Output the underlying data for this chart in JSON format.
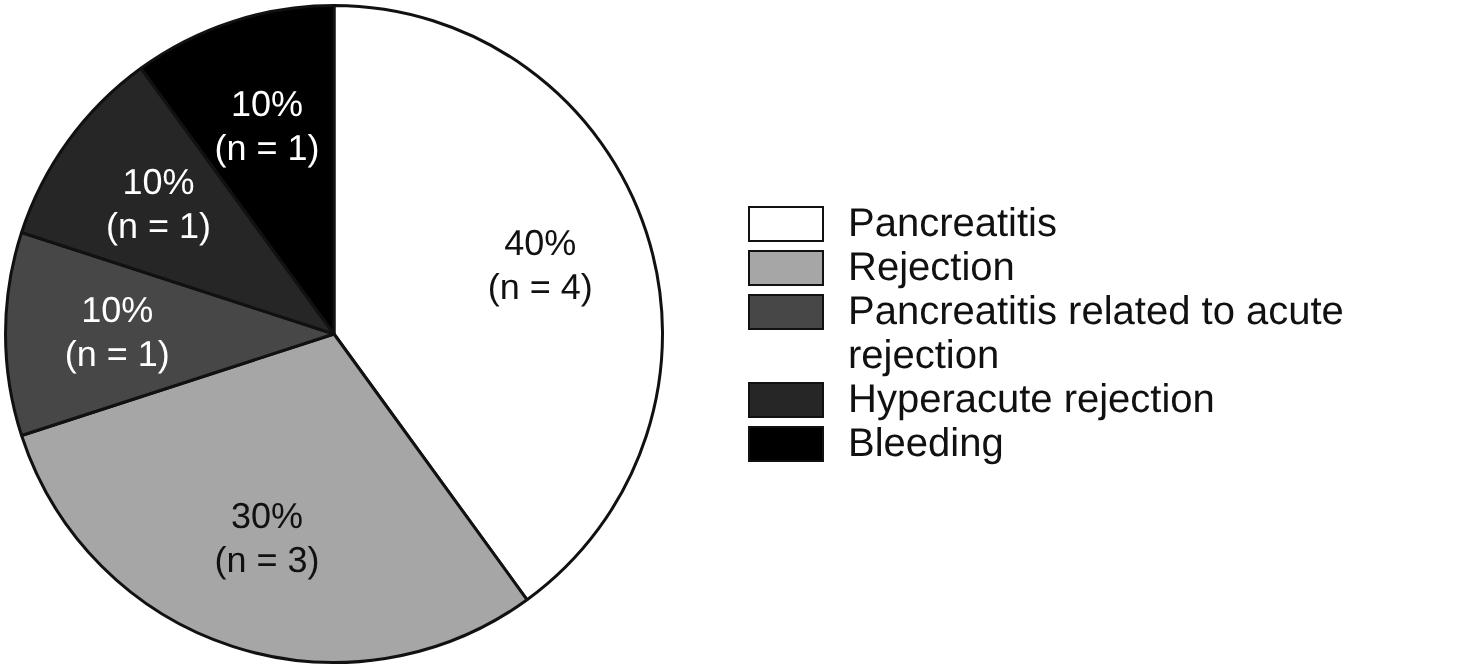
{
  "chart_data": {
    "type": "pie",
    "categories": [
      "Pancreatitis",
      "Rejection",
      "Pancreatitis related to acute rejection",
      "Hyperacute rejection",
      "Bleeding"
    ],
    "values": [
      40,
      30,
      10,
      10,
      10
    ],
    "colors": [
      "#ffffff",
      "#a6a6a6",
      "#474747",
      "#262626",
      "#000000"
    ],
    "value_labels": [
      "40%\n(n = 4)",
      "30%\n(n = 3)",
      "10%\n(n = 1)",
      "10%\n(n = 1)",
      "10%\n(n = 1)"
    ],
    "legend": "right"
  }
}
